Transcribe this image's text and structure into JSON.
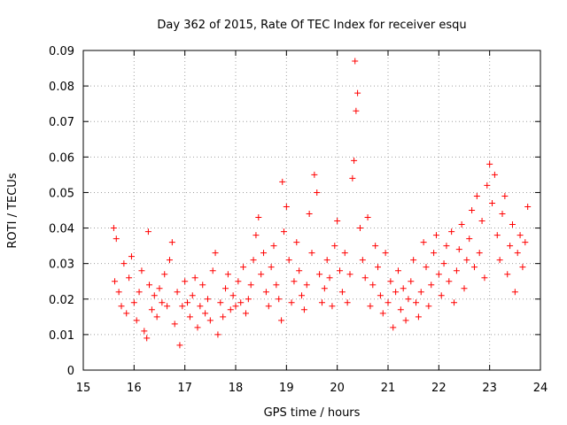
{
  "chart_data": {
    "type": "scatter",
    "title": "Day 362 of 2015, Rate Of TEC Index for receiver esqu",
    "xlabel": "GPS time / hours",
    "ylabel": "ROTI / TECUs",
    "xlim": [
      15,
      24
    ],
    "ylim": [
      0,
      0.09
    ],
    "xticks": [
      "15",
      "16",
      "17",
      "18",
      "19",
      "20",
      "21",
      "22",
      "23",
      "24"
    ],
    "yticks": [
      "0",
      "0.01",
      "0.02",
      "0.03",
      "0.04",
      "0.05",
      "0.06",
      "0.07",
      "0.08",
      "0.09"
    ],
    "grid": true,
    "marker": "+",
    "color": "#ff0000",
    "series": [
      {
        "name": "ROTI",
        "x": [
          15.6,
          15.62,
          15.65,
          15.7,
          15.75,
          15.8,
          15.85,
          15.9,
          15.95,
          16.0,
          16.05,
          16.1,
          16.15,
          16.2,
          16.25,
          16.28,
          16.3,
          16.35,
          16.4,
          16.45,
          16.5,
          16.55,
          16.6,
          16.65,
          16.7,
          16.75,
          16.8,
          16.85,
          16.9,
          16.95,
          17.0,
          17.05,
          17.1,
          17.15,
          17.2,
          17.25,
          17.3,
          17.35,
          17.4,
          17.45,
          17.5,
          17.55,
          17.6,
          17.65,
          17.7,
          17.75,
          17.8,
          17.85,
          17.9,
          17.95,
          18.0,
          18.05,
          18.1,
          18.15,
          18.2,
          18.25,
          18.3,
          18.35,
          18.4,
          18.45,
          18.5,
          18.55,
          18.6,
          18.65,
          18.7,
          18.75,
          18.8,
          18.85,
          18.9,
          18.92,
          18.95,
          19.0,
          19.05,
          19.1,
          19.15,
          19.2,
          19.25,
          19.3,
          19.35,
          19.4,
          19.45,
          19.5,
          19.55,
          19.6,
          19.65,
          19.7,
          19.75,
          19.8,
          19.85,
          19.9,
          19.95,
          20.0,
          20.05,
          20.1,
          20.15,
          20.2,
          20.25,
          20.3,
          20.33,
          20.35,
          20.37,
          20.4,
          20.45,
          20.5,
          20.55,
          20.6,
          20.65,
          20.7,
          20.75,
          20.8,
          20.85,
          20.9,
          20.95,
          21.0,
          21.05,
          21.1,
          21.15,
          21.2,
          21.25,
          21.3,
          21.35,
          21.4,
          21.45,
          21.5,
          21.55,
          21.6,
          21.65,
          21.7,
          21.75,
          21.8,
          21.85,
          21.9,
          21.95,
          22.0,
          22.05,
          22.1,
          22.15,
          22.2,
          22.25,
          22.3,
          22.35,
          22.4,
          22.45,
          22.5,
          22.55,
          22.6,
          22.65,
          22.7,
          22.75,
          22.8,
          22.85,
          22.9,
          22.95,
          23.0,
          23.05,
          23.1,
          23.15,
          23.2,
          23.25,
          23.3,
          23.35,
          23.4,
          23.45,
          23.5,
          23.55,
          23.6,
          23.65,
          23.7,
          23.75
        ],
        "y": [
          0.04,
          0.025,
          0.037,
          0.022,
          0.018,
          0.03,
          0.016,
          0.026,
          0.032,
          0.019,
          0.014,
          0.022,
          0.028,
          0.011,
          0.009,
          0.039,
          0.024,
          0.017,
          0.021,
          0.015,
          0.023,
          0.019,
          0.027,
          0.018,
          0.031,
          0.036,
          0.013,
          0.022,
          0.007,
          0.018,
          0.025,
          0.019,
          0.015,
          0.021,
          0.026,
          0.012,
          0.018,
          0.024,
          0.016,
          0.02,
          0.014,
          0.028,
          0.033,
          0.01,
          0.019,
          0.015,
          0.023,
          0.027,
          0.017,
          0.021,
          0.018,
          0.025,
          0.019,
          0.029,
          0.016,
          0.02,
          0.024,
          0.031,
          0.038,
          0.043,
          0.027,
          0.033,
          0.022,
          0.018,
          0.029,
          0.035,
          0.024,
          0.02,
          0.014,
          0.053,
          0.039,
          0.046,
          0.031,
          0.019,
          0.025,
          0.036,
          0.028,
          0.021,
          0.017,
          0.024,
          0.044,
          0.033,
          0.055,
          0.05,
          0.027,
          0.019,
          0.023,
          0.031,
          0.026,
          0.018,
          0.035,
          0.042,
          0.028,
          0.022,
          0.033,
          0.019,
          0.027,
          0.054,
          0.059,
          0.087,
          0.073,
          0.078,
          0.04,
          0.031,
          0.026,
          0.043,
          0.018,
          0.024,
          0.035,
          0.029,
          0.021,
          0.016,
          0.033,
          0.019,
          0.025,
          0.012,
          0.022,
          0.028,
          0.017,
          0.023,
          0.014,
          0.02,
          0.025,
          0.031,
          0.019,
          0.015,
          0.022,
          0.036,
          0.029,
          0.018,
          0.024,
          0.033,
          0.038,
          0.027,
          0.021,
          0.03,
          0.035,
          0.025,
          0.039,
          0.019,
          0.028,
          0.034,
          0.041,
          0.023,
          0.031,
          0.037,
          0.045,
          0.029,
          0.049,
          0.033,
          0.042,
          0.026,
          0.052,
          0.058,
          0.047,
          0.055,
          0.038,
          0.031,
          0.044,
          0.049,
          0.027,
          0.035,
          0.041,
          0.022,
          0.033,
          0.038,
          0.029,
          0.036,
          0.046
        ]
      }
    ]
  }
}
